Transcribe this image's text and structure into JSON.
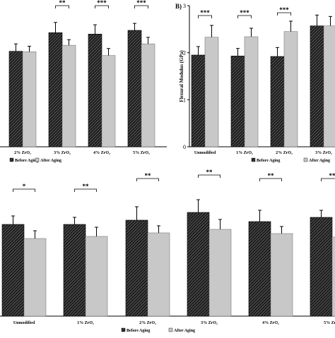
{
  "colors": {
    "before": "#3a3a3a",
    "after": "#c8c8c8",
    "axis": "#000000"
  },
  "chart_data": [
    {
      "panel_id": "flexural-strength-partial",
      "type": "bar",
      "panel_label": "",
      "categories": [
        "2% ZrO₂",
        "3% ZrO₂",
        "4% ZrO₂",
        "5% ZrO₂"
      ],
      "series": [
        {
          "name": "Before Aging",
          "values": [
            2.05,
            2.45,
            2.42,
            2.5
          ],
          "errors": [
            0.16,
            0.22,
            0.2,
            0.15
          ]
        },
        {
          "name": "After Aging",
          "values": [
            2.04,
            2.18,
            1.96,
            2.21
          ],
          "errors": [
            0.12,
            0.12,
            0.15,
            0.14
          ]
        }
      ],
      "ylim": [
        0,
        3
      ],
      "ylabel": "",
      "significance": [
        "",
        "**",
        "***",
        "***"
      ],
      "legend_labels": [
        "Before Aging",
        "After Aging"
      ],
      "legend": "bottom"
    },
    {
      "panel_id": "flexural-modulus",
      "type": "bar",
      "panel_label": "B)",
      "categories": [
        "Unmodified",
        "1% ZrO₂",
        "2% ZrO₂",
        "3% ZrO₂"
      ],
      "series": [
        {
          "name": "Before Aging",
          "values": [
            1.95,
            1.93,
            1.92,
            2.57
          ],
          "errors": [
            0.18,
            0.16,
            0.19,
            0.23
          ]
        },
        {
          "name": "After Aging",
          "values": [
            2.33,
            2.34,
            2.45,
            2.57
          ],
          "errors": [
            0.25,
            0.18,
            0.22,
            0.2
          ]
        }
      ],
      "ylim": [
        0,
        3
      ],
      "yticks": [
        0,
        1,
        2,
        3
      ],
      "ylabel": "Flexural Modulus (GPa)",
      "significance": [
        "***",
        "***",
        "***",
        ""
      ],
      "legend_labels": [
        "Before Aging",
        "After Aging"
      ],
      "legend": "bottom"
    },
    {
      "panel_id": "bottom-chart",
      "type": "bar",
      "panel_label": "",
      "categories": [
        "Unmodified",
        "1% ZrO₂",
        "2% ZrO₂",
        "3% ZrO₂",
        "4% ZrO₂",
        "5% ZrO₂"
      ],
      "series": [
        {
          "name": "Before Aging",
          "values": [
            1.3,
            1.3,
            1.36,
            1.47,
            1.34,
            1.4
          ],
          "errors": [
            0.12,
            0.1,
            0.19,
            0.18,
            0.16,
            0.1
          ]
        },
        {
          "name": "After Aging",
          "values": [
            1.1,
            1.13,
            1.18,
            1.23,
            1.17,
            1.12
          ],
          "errors": [
            0.11,
            0.13,
            0.1,
            0.14,
            0.1,
            0.13
          ]
        }
      ],
      "ylim": [
        0,
        2.0
      ],
      "ylabel": "",
      "significance": [
        "*",
        "**",
        "**",
        "**",
        "**",
        "**"
      ],
      "legend_labels": [
        "Before Aging",
        "After Aging"
      ],
      "legend": "bottom"
    }
  ]
}
